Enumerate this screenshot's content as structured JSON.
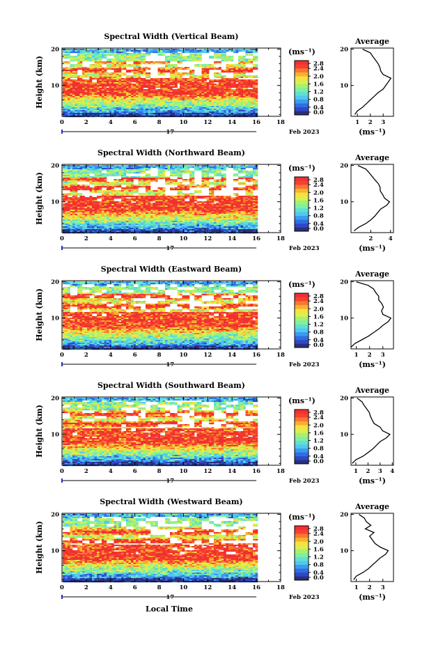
{
  "figure": {
    "date_day": "17",
    "date_month_year": "Feb 2023",
    "xlabel": "Local Time",
    "ylabel": "Height (km)",
    "colorbar_unit": "(ms⁻¹)",
    "average_title": "Average",
    "average_xlabel": "(ms⁻¹)"
  },
  "colorbar": {
    "range": [
      0.0,
      2.8
    ],
    "tick_labels": [
      "2.8",
      "2.4",
      "2.0",
      "1.6",
      "1.2",
      "0.8",
      "0.4",
      "0.0"
    ],
    "colors": [
      "#2b2f7a",
      "#2f48c8",
      "#2f6ee0",
      "#3c9bf0",
      "#50c8f0",
      "#60e0d0",
      "#80f0a0",
      "#a8f070",
      "#d8f050",
      "#f8e040",
      "#f8b030",
      "#f87830",
      "#f84030",
      "#f03030"
    ]
  },
  "chart_data": [
    {
      "type": "heatmap",
      "title": "Spectral Width (Vertical Beam)",
      "x_range_hours": [
        0,
        18
      ],
      "x_ticks": [
        "0",
        "2",
        "4",
        "6",
        "8",
        "10",
        "12",
        "14",
        "16",
        "18"
      ],
      "y_range_km": [
        1.5,
        20.3
      ],
      "y_ticks": [
        "20",
        "10"
      ],
      "data_end_hour": 16,
      "profile": {
        "height_km": [
          2,
          3,
          4,
          5,
          6,
          7,
          8,
          9,
          10,
          11,
          12,
          13,
          14,
          15,
          16,
          17,
          18,
          19,
          20
        ],
        "width": [
          0.8,
          1.0,
          1.4,
          1.7,
          2.0,
          2.3,
          2.6,
          3.0,
          3.2,
          3.4,
          3.6,
          3.0,
          2.8,
          2.7,
          2.6,
          2.5,
          2.3,
          2.0,
          1.4
        ]
      },
      "avg_xlim": [
        0.5,
        3.8
      ],
      "avg_xticks": [
        "1",
        "2",
        "3"
      ]
    },
    {
      "type": "heatmap",
      "title": "Spectral Width (Northward Beam)",
      "x_range_hours": [
        0,
        18
      ],
      "x_ticks": [
        "0",
        "2",
        "4",
        "6",
        "8",
        "10",
        "12",
        "14",
        "16",
        "18"
      ],
      "y_range_km": [
        1.5,
        20.3
      ],
      "y_ticks": [
        "20",
        "10"
      ],
      "data_end_hour": 16,
      "profile": {
        "height_km": [
          2,
          3,
          4,
          5,
          6,
          7,
          8,
          9,
          10,
          11,
          12,
          13,
          14,
          15,
          16,
          17,
          18,
          19,
          20
        ],
        "width": [
          0.3,
          0.8,
          1.5,
          2.0,
          2.4,
          2.7,
          3.0,
          3.6,
          3.9,
          3.4,
          3.2,
          3.0,
          2.9,
          2.7,
          2.5,
          2.2,
          1.9,
          1.5,
          0.7
        ]
      },
      "avg_xlim": [
        0,
        4.3
      ],
      "avg_xticks": [
        "2",
        "4"
      ]
    },
    {
      "type": "heatmap",
      "title": "Spectral Width (Eastward Beam)",
      "x_range_hours": [
        0,
        18
      ],
      "x_ticks": [
        "0",
        "2",
        "4",
        "6",
        "8",
        "10",
        "12",
        "14",
        "16",
        "18"
      ],
      "y_range_km": [
        1.5,
        20.3
      ],
      "y_ticks": [
        "20",
        "10"
      ],
      "data_end_hour": 16,
      "profile": {
        "height_km": [
          2,
          3,
          4,
          5,
          6,
          7,
          8,
          9,
          10,
          11,
          12,
          13,
          14,
          15,
          16,
          17,
          18,
          19,
          20
        ],
        "width": [
          0.6,
          0.9,
          1.4,
          1.9,
          2.3,
          2.7,
          3.0,
          3.4,
          3.6,
          3.0,
          2.9,
          3.1,
          2.8,
          2.6,
          2.7,
          2.4,
          2.2,
          1.9,
          1.0
        ]
      },
      "avg_xlim": [
        0.6,
        3.8
      ],
      "avg_xticks": [
        "1",
        "2",
        "3"
      ]
    },
    {
      "type": "heatmap",
      "title": "Spectral Width (Southward Beam)",
      "x_range_hours": [
        0,
        18
      ],
      "x_ticks": [
        "0",
        "2",
        "4",
        "6",
        "8",
        "10",
        "12",
        "14",
        "16",
        "18"
      ],
      "y_range_km": [
        1.5,
        20.3
      ],
      "y_ticks": [
        "20",
        "10"
      ],
      "data_end_hour": 16,
      "profile": {
        "height_km": [
          2,
          3,
          4,
          5,
          6,
          7,
          8,
          9,
          10,
          11,
          12,
          13,
          14,
          15,
          16,
          17,
          18,
          19,
          20
        ],
        "width": [
          0.7,
          1.0,
          1.6,
          2.0,
          2.4,
          2.7,
          3.0,
          3.5,
          3.8,
          3.2,
          3.0,
          2.6,
          2.4,
          2.3,
          2.2,
          2.0,
          1.7,
          1.5,
          1.1
        ]
      },
      "avg_xlim": [
        0.6,
        4.1
      ],
      "avg_xticks": [
        "1",
        "2",
        "3",
        "4"
      ]
    },
    {
      "type": "heatmap",
      "title": "Spectral Width (Westward Beam)",
      "x_range_hours": [
        0,
        18
      ],
      "x_ticks": [
        "0",
        "2",
        "4",
        "6",
        "8",
        "10",
        "12",
        "14",
        "16",
        "18"
      ],
      "y_range_km": [
        1.5,
        20.3
      ],
      "y_ticks": [
        "20",
        "10"
      ],
      "data_end_hour": 16,
      "profile": {
        "height_km": [
          2,
          3,
          4,
          5,
          6,
          7,
          8,
          9,
          10,
          11,
          12,
          13,
          14,
          15,
          16,
          17,
          18,
          19,
          20
        ],
        "width": [
          0.8,
          1.0,
          1.5,
          1.9,
          2.2,
          2.5,
          2.8,
          3.2,
          3.4,
          2.8,
          2.4,
          2.2,
          2.0,
          2.3,
          1.8,
          2.1,
          1.7,
          1.6,
          1.2
        ]
      },
      "avg_xlim": [
        0.6,
        3.8
      ],
      "avg_xticks": [
        "1",
        "2",
        "3"
      ]
    }
  ]
}
